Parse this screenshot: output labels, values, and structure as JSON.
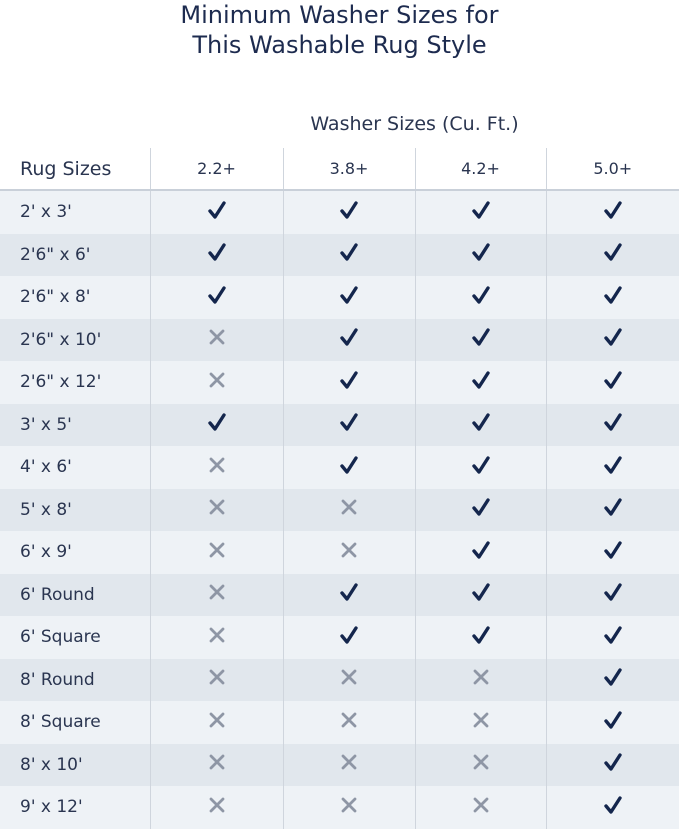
{
  "title_lines": [
    "Minimum Washer Sizes for",
    "This Washable Rug Style"
  ],
  "colors": {
    "text": "#1d2b4f",
    "check": "#14264d",
    "cross": "#8e96a5",
    "row_light": "#eef2f6",
    "row_dark": "#e1e7ed"
  },
  "chart_data": {
    "type": "table",
    "title": "Minimum Washer Sizes for This Washable Rug Style",
    "column_group_label": "Washer Sizes (Cu. Ft.)",
    "row_header_label": "Rug Sizes",
    "columns": [
      "2.2+",
      "3.8+",
      "4.2+",
      "5.0+"
    ],
    "legend": {
      "check-icon": "compatible",
      "x-icon": "not compatible"
    },
    "rows": [
      {
        "rug": "2' x 3'",
        "fits": [
          true,
          true,
          true,
          true
        ]
      },
      {
        "rug": "2'6\" x 6'",
        "fits": [
          true,
          true,
          true,
          true
        ]
      },
      {
        "rug": "2'6\" x 8'",
        "fits": [
          true,
          true,
          true,
          true
        ]
      },
      {
        "rug": "2'6\" x 10'",
        "fits": [
          false,
          true,
          true,
          true
        ]
      },
      {
        "rug": "2'6\" x 12'",
        "fits": [
          false,
          true,
          true,
          true
        ]
      },
      {
        "rug": "3' x 5'",
        "fits": [
          true,
          true,
          true,
          true
        ]
      },
      {
        "rug": "4' x 6'",
        "fits": [
          false,
          true,
          true,
          true
        ]
      },
      {
        "rug": "5' x 8'",
        "fits": [
          false,
          false,
          true,
          true
        ]
      },
      {
        "rug": "6' x 9'",
        "fits": [
          false,
          false,
          true,
          true
        ]
      },
      {
        "rug": "6' Round",
        "fits": [
          false,
          true,
          true,
          true
        ]
      },
      {
        "rug": "6' Square",
        "fits": [
          false,
          true,
          true,
          true
        ]
      },
      {
        "rug": "8' Round",
        "fits": [
          false,
          false,
          false,
          true
        ]
      },
      {
        "rug": "8' Square",
        "fits": [
          false,
          false,
          false,
          true
        ]
      },
      {
        "rug": "8' x 10'",
        "fits": [
          false,
          false,
          false,
          true
        ]
      },
      {
        "rug": "9' x 12'",
        "fits": [
          false,
          false,
          false,
          true
        ]
      }
    ]
  }
}
